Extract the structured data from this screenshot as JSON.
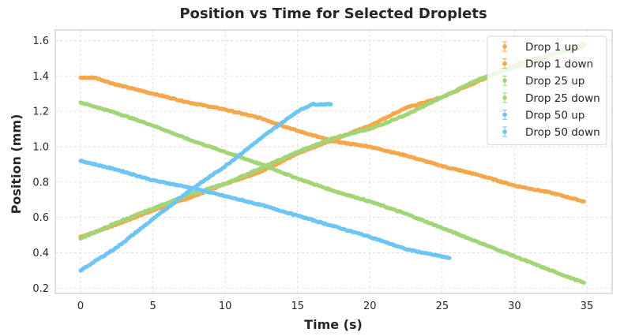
{
  "chart_data": {
    "type": "scatter",
    "title": "Position vs Time for Selected Droplets",
    "xlabel": "Time (s)",
    "ylabel": "Position (mm)",
    "xlim": [
      -1.75,
      36.75
    ],
    "ylim": [
      0.17,
      1.66
    ],
    "x_ticks": [
      0,
      5,
      10,
      15,
      20,
      25,
      30,
      35
    ],
    "y_ticks": [
      0.2,
      0.4,
      0.6,
      0.8,
      1.0,
      1.2,
      1.4,
      1.6
    ],
    "x_tick_labels": [
      "0",
      "5",
      "10",
      "15",
      "20",
      "25",
      "30",
      "35"
    ],
    "y_tick_labels": [
      "0.2",
      "0.4",
      "0.6",
      "0.8",
      "1.0",
      "1.2",
      "1.4",
      "1.6"
    ],
    "grid": true,
    "legend_position": "top-right",
    "series": [
      {
        "name": "Drop 1 up",
        "color": "#F5A74A",
        "marker": "circle",
        "error_bars": true,
        "x": [
          0,
          2.5,
          5,
          7.5,
          10,
          12.5,
          15,
          17.5,
          20,
          22.5,
          25,
          27.5,
          30,
          32.5,
          34.8
        ],
        "y": [
          0.49,
          0.56,
          0.64,
          0.71,
          0.79,
          0.86,
          0.96,
          1.04,
          1.12,
          1.22,
          1.28,
          1.37,
          1.46,
          1.52,
          1.58
        ]
      },
      {
        "name": "Drop 1 down",
        "color": "#F5A74A",
        "marker": "circle",
        "error_bars": true,
        "x": [
          0,
          1,
          2.5,
          5,
          7.5,
          10,
          12.5,
          15,
          17.5,
          20,
          22.5,
          25,
          27.5,
          30,
          32.5,
          34.8
        ],
        "y": [
          1.39,
          1.39,
          1.35,
          1.3,
          1.25,
          1.21,
          1.16,
          1.09,
          1.03,
          1.0,
          0.95,
          0.89,
          0.84,
          0.78,
          0.74,
          0.69
        ]
      },
      {
        "name": "Drop 25 up",
        "color": "#A2D576",
        "marker": "circle",
        "error_bars": true,
        "x": [
          0,
          2.5,
          5,
          7.5,
          10,
          12.5,
          15,
          17.5,
          20,
          22.5,
          25,
          27.5,
          30,
          32.5,
          34.8
        ],
        "y": [
          0.48,
          0.57,
          0.65,
          0.73,
          0.79,
          0.88,
          0.97,
          1.05,
          1.1,
          1.18,
          1.28,
          1.38,
          1.45,
          1.52,
          1.57
        ]
      },
      {
        "name": "Drop 25 down",
        "color": "#A2D576",
        "marker": "circle",
        "error_bars": true,
        "x": [
          0,
          2.5,
          5,
          7.5,
          10,
          12.5,
          15,
          17.5,
          20,
          22.5,
          25,
          27.5,
          30,
          32.5,
          34.8
        ],
        "y": [
          1.25,
          1.19,
          1.12,
          1.04,
          0.97,
          0.9,
          0.82,
          0.75,
          0.69,
          0.62,
          0.54,
          0.46,
          0.38,
          0.3,
          0.23
        ]
      },
      {
        "name": "Drop 50 up",
        "color": "#6DC5F5",
        "marker": "circle",
        "error_bars": true,
        "x": [
          0,
          2.5,
          5,
          7.5,
          10,
          12.5,
          14,
          15,
          16,
          17.3
        ],
        "y": [
          0.3,
          0.43,
          0.59,
          0.75,
          0.89,
          1.05,
          1.14,
          1.2,
          1.24,
          1.24
        ]
      },
      {
        "name": "Drop 50 down",
        "color": "#6DC5F5",
        "marker": "circle",
        "error_bars": true,
        "x": [
          0,
          2.5,
          5,
          7.5,
          10,
          12.5,
          15,
          17.5,
          20,
          22.5,
          25.5
        ],
        "y": [
          0.92,
          0.87,
          0.81,
          0.77,
          0.72,
          0.67,
          0.61,
          0.55,
          0.49,
          0.42,
          0.37
        ]
      }
    ]
  }
}
